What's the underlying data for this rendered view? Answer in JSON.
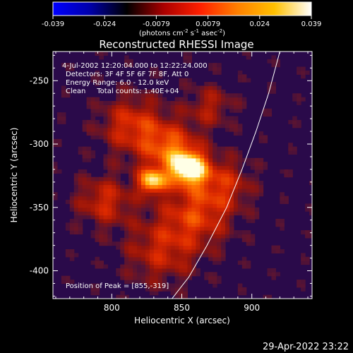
{
  "colorbar": {
    "ticks": [
      "-0.039",
      "-0.024",
      "-0.0079",
      "0.0079",
      "0.024",
      "0.039"
    ],
    "units_prefix": "(photons cm",
    "units_sup1": "-2",
    "units_mid": " s",
    "units_sup2": "-1",
    "units_mid2": " asec",
    "units_sup3": "-2",
    "units_suffix": ")",
    "stops": [
      "#0000ff",
      "#0000aa",
      "#000000",
      "#aa0000",
      "#ff2000",
      "#ff8000",
      "#ffc000",
      "#ffffff"
    ]
  },
  "chart_data": {
    "type": "heatmap",
    "title": "Reconstructed RHESSI Image",
    "xlabel": "Heliocentric X (arcsec)",
    "ylabel": "Heliocentric Y (arcsec)",
    "xlim": [
      758,
      943
    ],
    "ylim": [
      -422,
      -227
    ],
    "xticks": [
      800,
      850,
      900
    ],
    "yticks": [
      -250,
      -300,
      -350,
      -400
    ],
    "info_lines": [
      "4-Jul-2002 12:20:04.000 to 12:22:24.000",
      "Detectors: 3F 4F 5F 6F 7F 8F, Att 0",
      "Energy Range: 6.0 - 12.0 keV",
      "Clean     Total counts: 1.40E+04"
    ],
    "peak_label": "Position of Peak = [855,-319]",
    "peak": [
      855,
      -319
    ],
    "sources": [
      {
        "x": 855,
        "y": -319,
        "peak": 1.0,
        "sigma": 9
      },
      {
        "x": 829,
        "y": -329,
        "peak": 0.82,
        "sigma": 7
      },
      {
        "x": 842,
        "y": -304,
        "peak": 0.55,
        "sigma": 14
      },
      {
        "x": 815,
        "y": -285,
        "peak": 0.45,
        "sigma": 16
      },
      {
        "x": 860,
        "y": -355,
        "peak": 0.45,
        "sigma": 18
      },
      {
        "x": 795,
        "y": -345,
        "peak": 0.4,
        "sigma": 14
      },
      {
        "x": 880,
        "y": -330,
        "peak": 0.35,
        "sigma": 14
      },
      {
        "x": 835,
        "y": -385,
        "peak": 0.35,
        "sigma": 18
      },
      {
        "x": 870,
        "y": -270,
        "peak": 0.3,
        "sigma": 12
      }
    ],
    "limb_curve": [
      [
        843,
        -422
      ],
      [
        855,
        -405
      ],
      [
        868,
        -380
      ],
      [
        882,
        -350
      ],
      [
        893,
        -320
      ],
      [
        903,
        -290
      ],
      [
        912,
        -260
      ],
      [
        920,
        -227
      ]
    ]
  },
  "footer": {
    "timestamp": "29-Apr-2022 23:22"
  }
}
